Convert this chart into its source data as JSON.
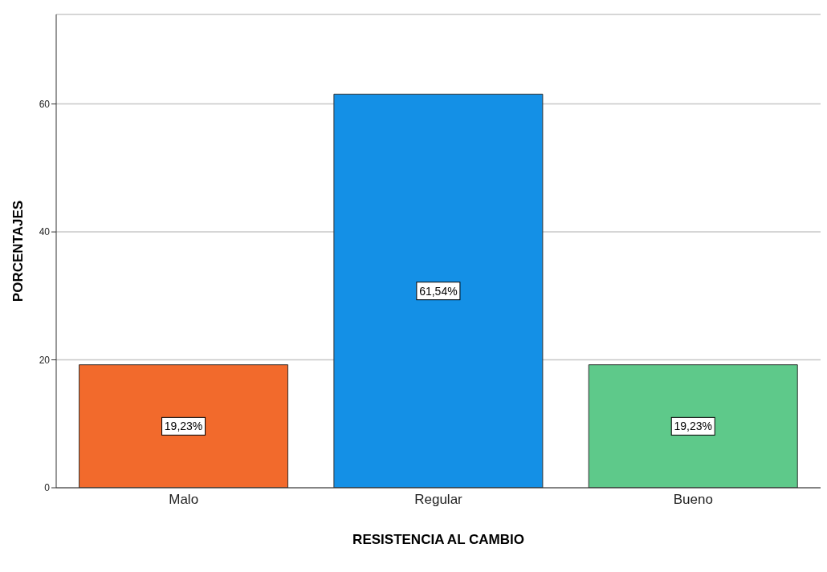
{
  "chart_data": {
    "type": "bar",
    "xlabel": "RESISTENCIA AL CAMBIO",
    "ylabel": "PORCENTAJES",
    "categories": [
      "Malo",
      "Regular",
      "Bueno"
    ],
    "values": [
      19.23,
      61.54,
      19.23
    ],
    "colors": [
      "#f26a2c",
      "#1490e6",
      "#5ec98a"
    ],
    "value_labels": [
      "19,23%",
      "61,54%",
      "19,23%"
    ],
    "ylim": [
      0,
      74
    ],
    "yticks": [
      0,
      20,
      40,
      60
    ],
    "grid": "y"
  }
}
